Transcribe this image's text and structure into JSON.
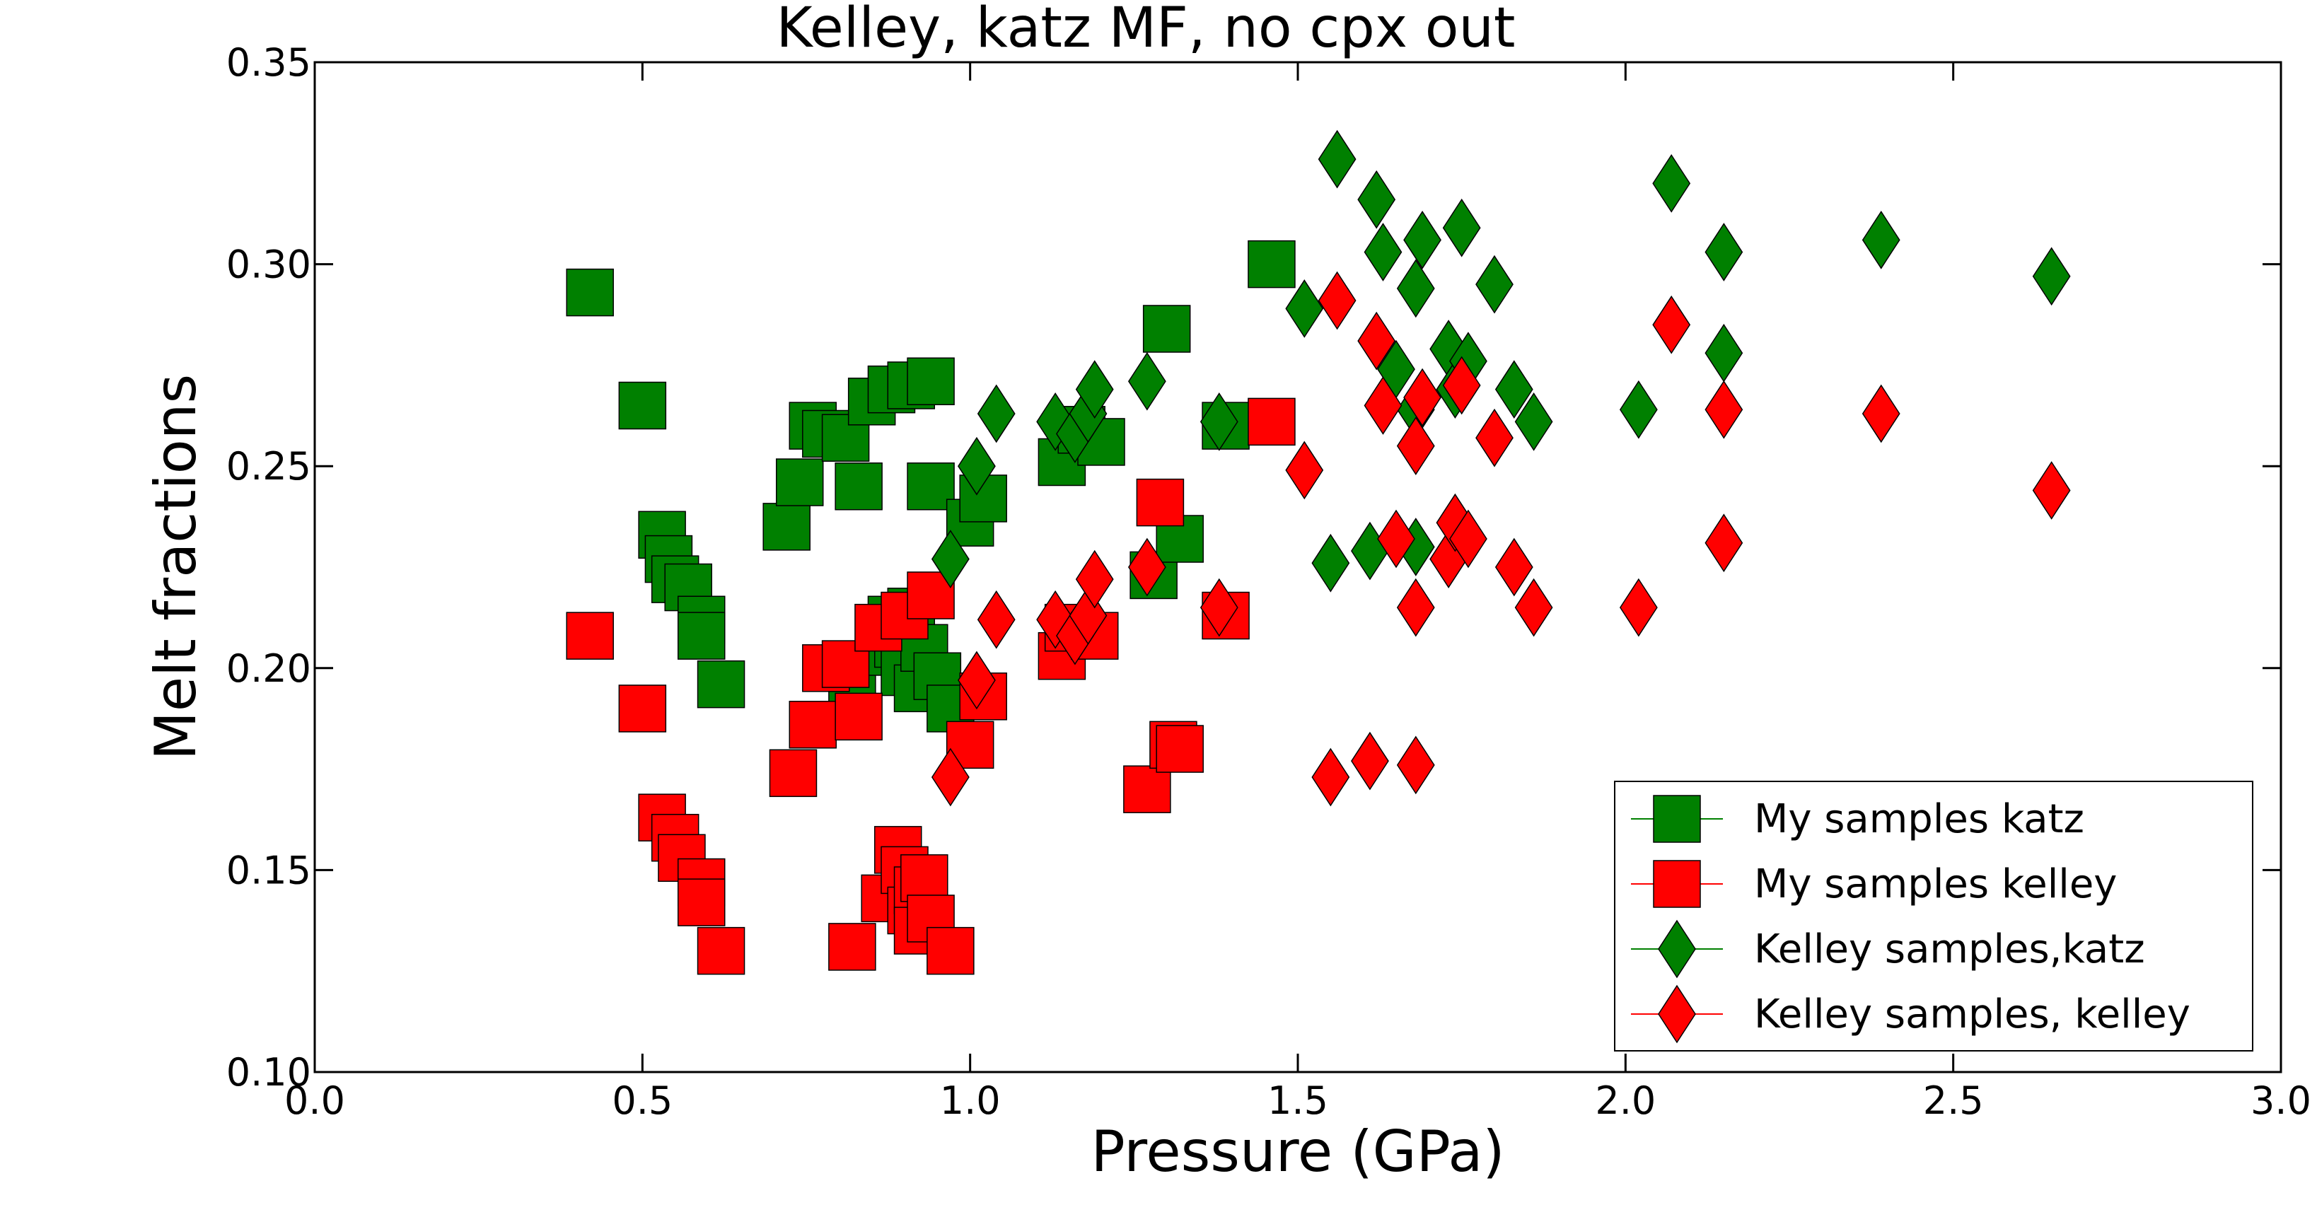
{
  "chart_data": {
    "type": "scatter",
    "title": "Kelley, katz MF, no cpx out",
    "xlabel": "Pressure (GPa)",
    "ylabel": "Melt fractions",
    "xlim": [
      0.0,
      3.0
    ],
    "ylim": [
      0.1,
      0.35
    ],
    "x_ticks": [
      "0.0",
      "0.5",
      "1.0",
      "1.5",
      "2.0",
      "2.5",
      "3.0"
    ],
    "y_ticks": [
      "0.10",
      "0.15",
      "0.20",
      "0.25",
      "0.30",
      "0.35"
    ],
    "grid": false,
    "legend_position": "bottom-right",
    "series": [
      {
        "name": "My samples katz",
        "color": "#008000",
        "marker": "square",
        "points": [
          [
            0.42,
            0.293
          ],
          [
            0.5,
            0.265
          ],
          [
            0.53,
            0.233
          ],
          [
            0.54,
            0.227
          ],
          [
            0.55,
            0.222
          ],
          [
            0.57,
            0.22
          ],
          [
            0.59,
            0.212
          ],
          [
            0.59,
            0.208
          ],
          [
            0.62,
            0.196
          ],
          [
            0.72,
            0.235
          ],
          [
            0.74,
            0.246
          ],
          [
            0.76,
            0.26
          ],
          [
            0.78,
            0.258
          ],
          [
            0.81,
            0.257
          ],
          [
            0.82,
            0.193
          ],
          [
            0.83,
            0.245
          ],
          [
            0.85,
            0.266
          ],
          [
            0.88,
            0.269
          ],
          [
            0.91,
            0.27
          ],
          [
            0.94,
            0.271
          ],
          [
            0.94,
            0.245
          ],
          [
            0.87,
            0.204
          ],
          [
            0.88,
            0.212
          ],
          [
            0.89,
            0.206
          ],
          [
            0.9,
            0.199
          ],
          [
            0.91,
            0.214
          ],
          [
            0.92,
            0.195
          ],
          [
            0.93,
            0.205
          ],
          [
            0.95,
            0.198
          ],
          [
            0.97,
            0.19
          ],
          [
            1.0,
            0.236
          ],
          [
            1.02,
            0.242
          ],
          [
            1.14,
            0.251
          ],
          [
            1.17,
            0.259
          ],
          [
            1.2,
            0.256
          ],
          [
            1.28,
            0.223
          ],
          [
            1.3,
            0.284
          ],
          [
            1.32,
            0.232
          ],
          [
            1.39,
            0.26
          ],
          [
            1.46,
            0.3
          ]
        ]
      },
      {
        "name": "My samples kelley",
        "color": "#ff0000",
        "marker": "square",
        "points": [
          [
            0.42,
            0.208
          ],
          [
            0.5,
            0.19
          ],
          [
            0.53,
            0.163
          ],
          [
            0.55,
            0.158
          ],
          [
            0.56,
            0.153
          ],
          [
            0.59,
            0.147
          ],
          [
            0.59,
            0.142
          ],
          [
            0.62,
            0.13
          ],
          [
            0.73,
            0.174
          ],
          [
            0.76,
            0.186
          ],
          [
            0.78,
            0.2
          ],
          [
            0.81,
            0.201
          ],
          [
            0.82,
            0.131
          ],
          [
            0.83,
            0.188
          ],
          [
            0.86,
            0.21
          ],
          [
            0.87,
            0.143
          ],
          [
            0.89,
            0.155
          ],
          [
            0.9,
            0.15
          ],
          [
            0.9,
            0.213
          ],
          [
            0.91,
            0.14
          ],
          [
            0.92,
            0.145
          ],
          [
            0.92,
            0.135
          ],
          [
            0.93,
            0.148
          ],
          [
            0.94,
            0.138
          ],
          [
            0.94,
            0.218
          ],
          [
            0.97,
            0.13
          ],
          [
            1.0,
            0.181
          ],
          [
            1.02,
            0.193
          ],
          [
            1.14,
            0.203
          ],
          [
            1.15,
            0.21
          ],
          [
            1.19,
            0.208
          ],
          [
            1.27,
            0.17
          ],
          [
            1.29,
            0.241
          ],
          [
            1.31,
            0.181
          ],
          [
            1.32,
            0.18
          ],
          [
            1.39,
            0.213
          ],
          [
            1.46,
            0.261
          ]
        ]
      },
      {
        "name": "Kelley samples,katz",
        "color": "#008000",
        "marker": "diamond",
        "points": [
          [
            0.97,
            0.227
          ],
          [
            1.01,
            0.25
          ],
          [
            1.04,
            0.263
          ],
          [
            1.13,
            0.261
          ],
          [
            1.16,
            0.258
          ],
          [
            1.18,
            0.263
          ],
          [
            1.19,
            0.269
          ],
          [
            1.27,
            0.271
          ],
          [
            1.38,
            0.261
          ],
          [
            1.51,
            0.289
          ],
          [
            1.55,
            0.226
          ],
          [
            1.56,
            0.326
          ],
          [
            1.61,
            0.229
          ],
          [
            1.62,
            0.316
          ],
          [
            1.63,
            0.303
          ],
          [
            1.65,
            0.274
          ],
          [
            1.68,
            0.264
          ],
          [
            1.68,
            0.294
          ],
          [
            1.68,
            0.23
          ],
          [
            1.69,
            0.306
          ],
          [
            1.73,
            0.279
          ],
          [
            1.74,
            0.269
          ],
          [
            1.75,
            0.309
          ],
          [
            1.76,
            0.276
          ],
          [
            1.8,
            0.295
          ],
          [
            1.83,
            0.269
          ],
          [
            1.86,
            0.261
          ],
          [
            2.02,
            0.264
          ],
          [
            2.07,
            0.32
          ],
          [
            2.15,
            0.303
          ],
          [
            2.15,
            0.278
          ],
          [
            2.39,
            0.306
          ],
          [
            2.65,
            0.297
          ]
        ]
      },
      {
        "name": "Kelley samples, kelley",
        "color": "#ff0000",
        "marker": "diamond",
        "points": [
          [
            0.97,
            0.173
          ],
          [
            1.01,
            0.197
          ],
          [
            1.04,
            0.212
          ],
          [
            1.13,
            0.212
          ],
          [
            1.16,
            0.208
          ],
          [
            1.18,
            0.213
          ],
          [
            1.19,
            0.222
          ],
          [
            1.27,
            0.225
          ],
          [
            1.38,
            0.215
          ],
          [
            1.51,
            0.249
          ],
          [
            1.55,
            0.173
          ],
          [
            1.56,
            0.291
          ],
          [
            1.61,
            0.177
          ],
          [
            1.62,
            0.281
          ],
          [
            1.63,
            0.265
          ],
          [
            1.65,
            0.232
          ],
          [
            1.68,
            0.176
          ],
          [
            1.68,
            0.255
          ],
          [
            1.68,
            0.215
          ],
          [
            1.69,
            0.267
          ],
          [
            1.73,
            0.227
          ],
          [
            1.74,
            0.236
          ],
          [
            1.75,
            0.27
          ],
          [
            1.76,
            0.232
          ],
          [
            1.8,
            0.257
          ],
          [
            1.83,
            0.225
          ],
          [
            1.86,
            0.215
          ],
          [
            2.02,
            0.215
          ],
          [
            2.07,
            0.285
          ],
          [
            2.15,
            0.264
          ],
          [
            2.15,
            0.231
          ],
          [
            2.39,
            0.263
          ],
          [
            2.65,
            0.244
          ]
        ]
      }
    ]
  }
}
